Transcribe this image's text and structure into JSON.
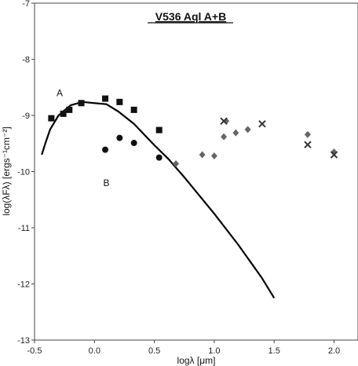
{
  "chart_data": {
    "type": "scatter",
    "title": "V536 Aql A+B",
    "xlabel": "logλ [μm]",
    "ylabel": "log(λFλ) [ergs⁻¹cm⁻²]",
    "xlim": [
      -0.5,
      2.2
    ],
    "ylim": [
      -13,
      -7
    ],
    "xticks": [
      -0.5,
      0.0,
      0.5,
      1.0,
      1.5,
      2.0
    ],
    "xtick_labels": [
      "-0.5",
      "0.0",
      "0.5",
      "1.0",
      "1.5",
      "2.0"
    ],
    "yticks": [
      -13,
      -12,
      -11,
      -10,
      -9,
      -8,
      -7
    ],
    "ytick_labels": [
      "-13",
      "-12",
      "-11",
      "-10",
      "-9",
      "-8",
      "-7"
    ],
    "grid": false,
    "annotations": [
      {
        "text": "A",
        "x": -0.29,
        "y": -8.6
      },
      {
        "text": "B",
        "x": 0.1,
        "y": -10.2
      }
    ],
    "series": [
      {
        "marker": "square",
        "color": "#111111",
        "points": [
          {
            "x": -0.36,
            "y": -9.05
          },
          {
            "x": -0.26,
            "y": -8.97
          },
          {
            "x": -0.21,
            "y": -8.9
          },
          {
            "x": -0.11,
            "y": -8.78
          },
          {
            "x": 0.09,
            "y": -8.7
          },
          {
            "x": 0.21,
            "y": -8.76
          },
          {
            "x": 0.33,
            "y": -8.9
          },
          {
            "x": 0.54,
            "y": -9.26
          }
        ]
      },
      {
        "marker": "circle",
        "color": "#111111",
        "points": [
          {
            "x": 0.09,
            "y": -9.61
          },
          {
            "x": 0.21,
            "y": -9.4
          },
          {
            "x": 0.33,
            "y": -9.49
          },
          {
            "x": 0.54,
            "y": -9.75
          }
        ]
      },
      {
        "marker": "diamond",
        "color": "#666666",
        "points": [
          {
            "x": 0.68,
            "y": -9.86
          },
          {
            "x": 0.9,
            "y": -9.7
          },
          {
            "x": 1.0,
            "y": -9.72
          },
          {
            "x": 1.08,
            "y": -9.38
          },
          {
            "x": 1.1,
            "y": -9.1
          },
          {
            "x": 1.18,
            "y": -9.31
          },
          {
            "x": 1.28,
            "y": -9.25
          },
          {
            "x": 1.78,
            "y": -9.34
          },
          {
            "x": 2.0,
            "y": -9.65
          }
        ]
      },
      {
        "marker": "cross",
        "color": "#333333",
        "points": [
          {
            "x": 1.08,
            "y": -9.1
          },
          {
            "x": 1.4,
            "y": -9.15
          },
          {
            "x": 1.78,
            "y": -9.52
          },
          {
            "x": 2.0,
            "y": -9.7
          }
        ]
      },
      {
        "type": "line",
        "color": "#000000",
        "points": [
          {
            "x": -0.44,
            "y": -9.7
          },
          {
            "x": -0.41,
            "y": -9.5
          },
          {
            "x": -0.37,
            "y": -9.25
          },
          {
            "x": -0.3,
            "y": -9.0
          },
          {
            "x": -0.2,
            "y": -8.82
          },
          {
            "x": -0.1,
            "y": -8.76
          },
          {
            "x": 0.1,
            "y": -8.8
          },
          {
            "x": 0.2,
            "y": -8.93
          },
          {
            "x": 0.33,
            "y": -9.15
          },
          {
            "x": 0.5,
            "y": -9.53
          },
          {
            "x": 0.62,
            "y": -9.78
          },
          {
            "x": 0.75,
            "y": -10.1
          },
          {
            "x": 1.0,
            "y": -10.75
          },
          {
            "x": 1.2,
            "y": -11.3
          },
          {
            "x": 1.4,
            "y": -11.9
          },
          {
            "x": 1.5,
            "y": -12.25
          }
        ]
      }
    ]
  }
}
